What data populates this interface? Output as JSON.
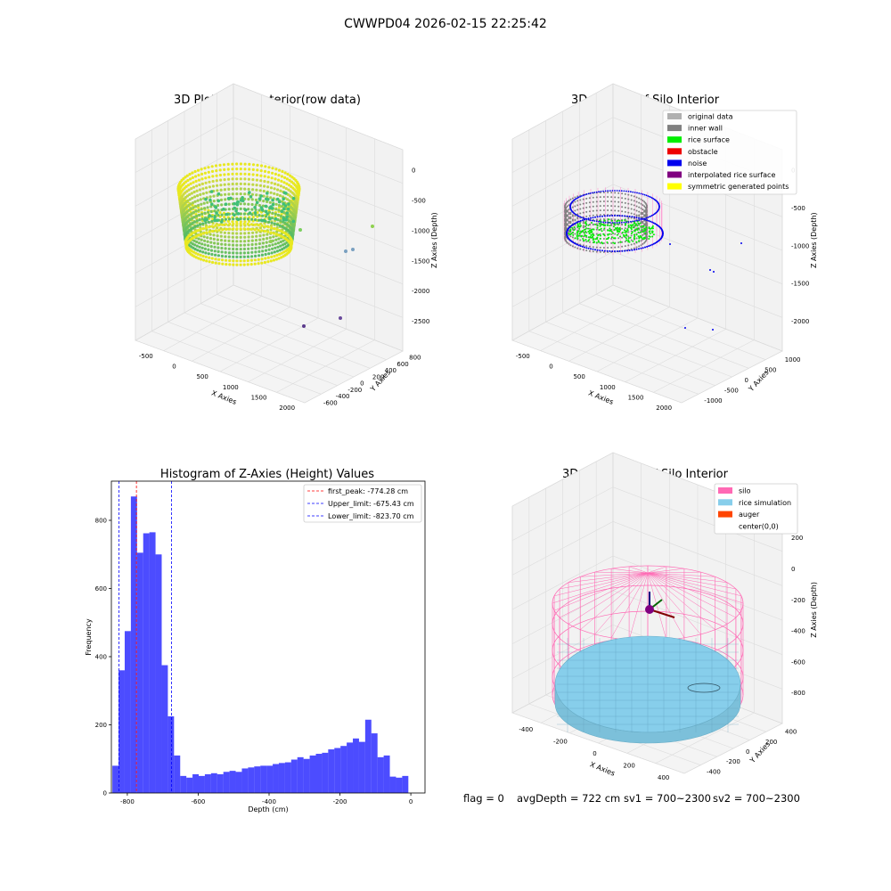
{
  "figure": {
    "suptitle": "CWWPD04 2026-02-15 22:25:42"
  },
  "panels": {
    "raw": {
      "title": "3D Plot of Silo Interior(row data)",
      "xlabel": "X Axies",
      "ylabel": "Y Axies",
      "zlabel": "Z Axies (Depth)",
      "xticks": [
        "-500",
        "0",
        "500",
        "1000",
        "1500",
        "2000"
      ],
      "yticks": [
        "-600",
        "-400",
        "-200",
        "0",
        "200",
        "400",
        "600",
        "800"
      ],
      "zticks": [
        "0",
        "-500",
        "-1000",
        "-1500",
        "-2000",
        "-2500"
      ]
    },
    "classify": {
      "title": "3D classify of Silo Interior",
      "xlabel": "X Axies",
      "ylabel": "Y Axies",
      "zlabel": "Z Axies (Depth)",
      "xticks": [
        "-500",
        "0",
        "500",
        "1000",
        "1500",
        "2000"
      ],
      "yticks": [
        "-1000",
        "-500",
        "0",
        "500",
        "1000"
      ],
      "zticks": [
        "0",
        "-500",
        "-1000",
        "-1500",
        "-2000"
      ],
      "legend": [
        {
          "label": "original data",
          "color": "#b0b0b0"
        },
        {
          "label": "inner wall",
          "color": "#808080"
        },
        {
          "label": "rice surface",
          "color": "#00ee00"
        },
        {
          "label": "obstacle",
          "color": "#ee0000"
        },
        {
          "label": "noise",
          "color": "#0000ee"
        },
        {
          "label": "interpolated rice surface",
          "color": "#800080"
        },
        {
          "label": "symmetric generated points",
          "color": "#ffff00"
        }
      ]
    },
    "simulation": {
      "title": "3D simulation of Silo Interior",
      "xlabel": "X Axies",
      "ylabel": "Y Axies",
      "zlabel": "Z Axies (Depth)",
      "xticks": [
        "-400",
        "-200",
        "0",
        "200",
        "400"
      ],
      "yticks": [
        "-400",
        "-200",
        "0",
        "200",
        "400"
      ],
      "zticks": [
        "200",
        "0",
        "-200",
        "-400",
        "-600",
        "-800"
      ],
      "legend": [
        {
          "label": "silo",
          "color": "#ff69b4"
        },
        {
          "label": "rice simulation",
          "color": "#87ceeb"
        },
        {
          "label": "auger",
          "color": "#ff4500"
        },
        {
          "label": "center(0,0)",
          "color": ""
        }
      ]
    }
  },
  "chart_data": {
    "type": "bar",
    "title": "Histogram of Z-Axies (Height) Values",
    "xlabel": "Depth (cm)",
    "ylabel": "Frequency",
    "xlim": [
      -845,
      40
    ],
    "ylim": [
      0,
      915
    ],
    "xticks": [
      -800,
      -600,
      -400,
      -200,
      0
    ],
    "yticks": [
      0,
      200,
      400,
      600,
      800
    ],
    "bin_width": 17.4,
    "x": [
      -833.5,
      -816.1,
      -798.7,
      -781.3,
      -763.9,
      -746.5,
      -729.1,
      -711.7,
      -694.3,
      -676.9,
      -659.5,
      -642.1,
      -624.7,
      -607.3,
      -589.9,
      -572.5,
      -555.1,
      -537.7,
      -520.3,
      -502.9,
      -485.5,
      -468.1,
      -450.7,
      -433.3,
      -415.9,
      -398.5,
      -381.1,
      -363.7,
      -346.3,
      -328.9,
      -311.5,
      -294.1,
      -276.7,
      -259.3,
      -241.9,
      -224.5,
      -207.1,
      -189.7,
      -172.3,
      -154.9,
      -137.5,
      -120.1,
      -102.7,
      -85.3,
      -67.9,
      -50.5,
      -33.1,
      -15.7
    ],
    "values": [
      80,
      360,
      475,
      870,
      705,
      762,
      765,
      700,
      375,
      225,
      110,
      50,
      45,
      55,
      50,
      55,
      58,
      55,
      62,
      65,
      62,
      72,
      75,
      78,
      80,
      80,
      85,
      88,
      90,
      98,
      105,
      100,
      110,
      115,
      118,
      128,
      132,
      138,
      148,
      160,
      150,
      215,
      175,
      105,
      110,
      48,
      45,
      50
    ],
    "bar_color": "#0000ff",
    "lines": [
      {
        "name": "first_peak: -774.28 cm",
        "x": -774.28,
        "color": "#ff0000"
      },
      {
        "name": "Upper_limit: -675.43 cm",
        "x": -675.43,
        "color": "#0000ff"
      },
      {
        "name": "Lower_limit: -823.70 cm",
        "x": -823.7,
        "color": "#0000ff"
      }
    ],
    "legend_position": "upper right"
  },
  "stats": {
    "flag": "flag = 0",
    "avg_depth": "avgDepth = 722 cm",
    "sv1": "sv1 = 700~2300",
    "sv2": "sv2 = 700~2300"
  }
}
